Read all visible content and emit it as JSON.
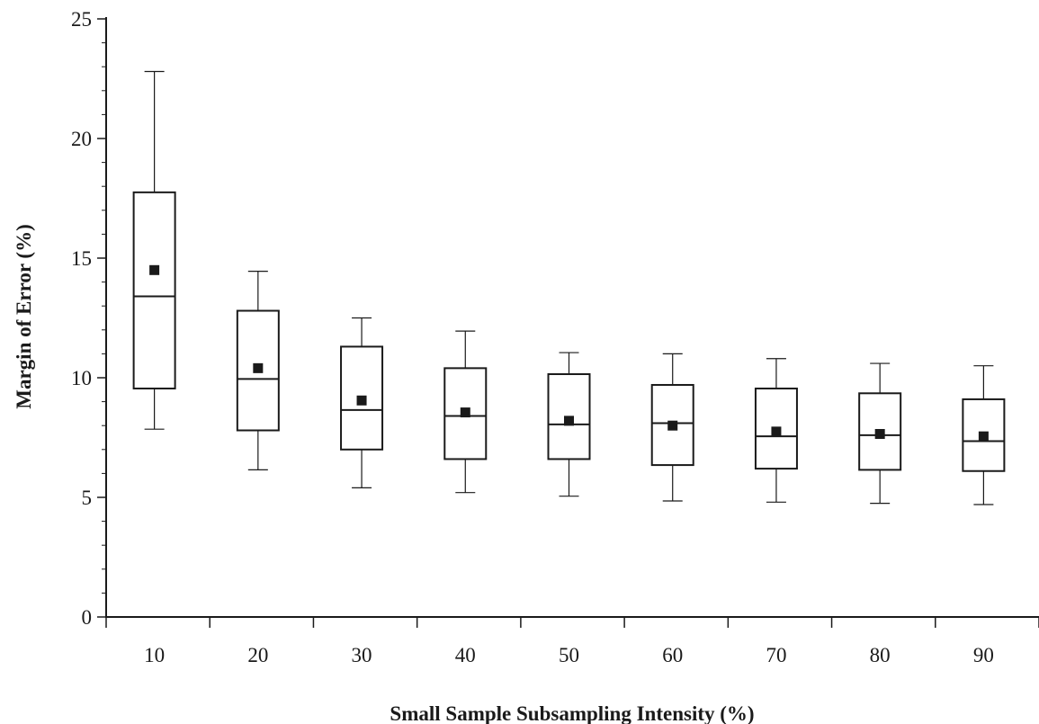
{
  "chart_data": {
    "type": "box",
    "title": "",
    "xlabel": "Small Sample Subsampling Intensity (%)",
    "ylabel": "Margin of Error (%)",
    "ylim": [
      0,
      25
    ],
    "yticks": [
      0,
      5,
      10,
      15,
      20,
      25
    ],
    "grid": false,
    "legend": "none",
    "marker_meaning": "mean",
    "categories": [
      "10",
      "20",
      "30",
      "40",
      "50",
      "60",
      "70",
      "80",
      "90"
    ],
    "boxes": [
      {
        "category": "10",
        "whisker_low": 7.85,
        "q1": 9.55,
        "median": 13.4,
        "q3": 17.75,
        "whisker_high": 22.8,
        "mean": 14.5
      },
      {
        "category": "20",
        "whisker_low": 6.15,
        "q1": 7.8,
        "median": 9.95,
        "q3": 12.8,
        "whisker_high": 14.45,
        "mean": 10.4
      },
      {
        "category": "30",
        "whisker_low": 5.4,
        "q1": 7.0,
        "median": 8.65,
        "q3": 11.3,
        "whisker_high": 12.5,
        "mean": 9.05
      },
      {
        "category": "40",
        "whisker_low": 5.2,
        "q1": 6.6,
        "median": 8.4,
        "q3": 10.4,
        "whisker_high": 11.95,
        "mean": 8.55
      },
      {
        "category": "50",
        "whisker_low": 5.05,
        "q1": 6.6,
        "median": 8.05,
        "q3": 10.15,
        "whisker_high": 11.05,
        "mean": 8.2
      },
      {
        "category": "60",
        "whisker_low": 4.85,
        "q1": 6.35,
        "median": 8.1,
        "q3": 9.7,
        "whisker_high": 11.0,
        "mean": 8.0
      },
      {
        "category": "70",
        "whisker_low": 4.8,
        "q1": 6.2,
        "median": 7.55,
        "q3": 9.55,
        "whisker_high": 10.8,
        "mean": 7.75
      },
      {
        "category": "80",
        "whisker_low": 4.75,
        "q1": 6.15,
        "median": 7.6,
        "q3": 9.35,
        "whisker_high": 10.6,
        "mean": 7.65
      },
      {
        "category": "90",
        "whisker_low": 4.7,
        "q1": 6.1,
        "median": 7.35,
        "q3": 9.1,
        "whisker_high": 10.5,
        "mean": 7.55
      }
    ]
  }
}
